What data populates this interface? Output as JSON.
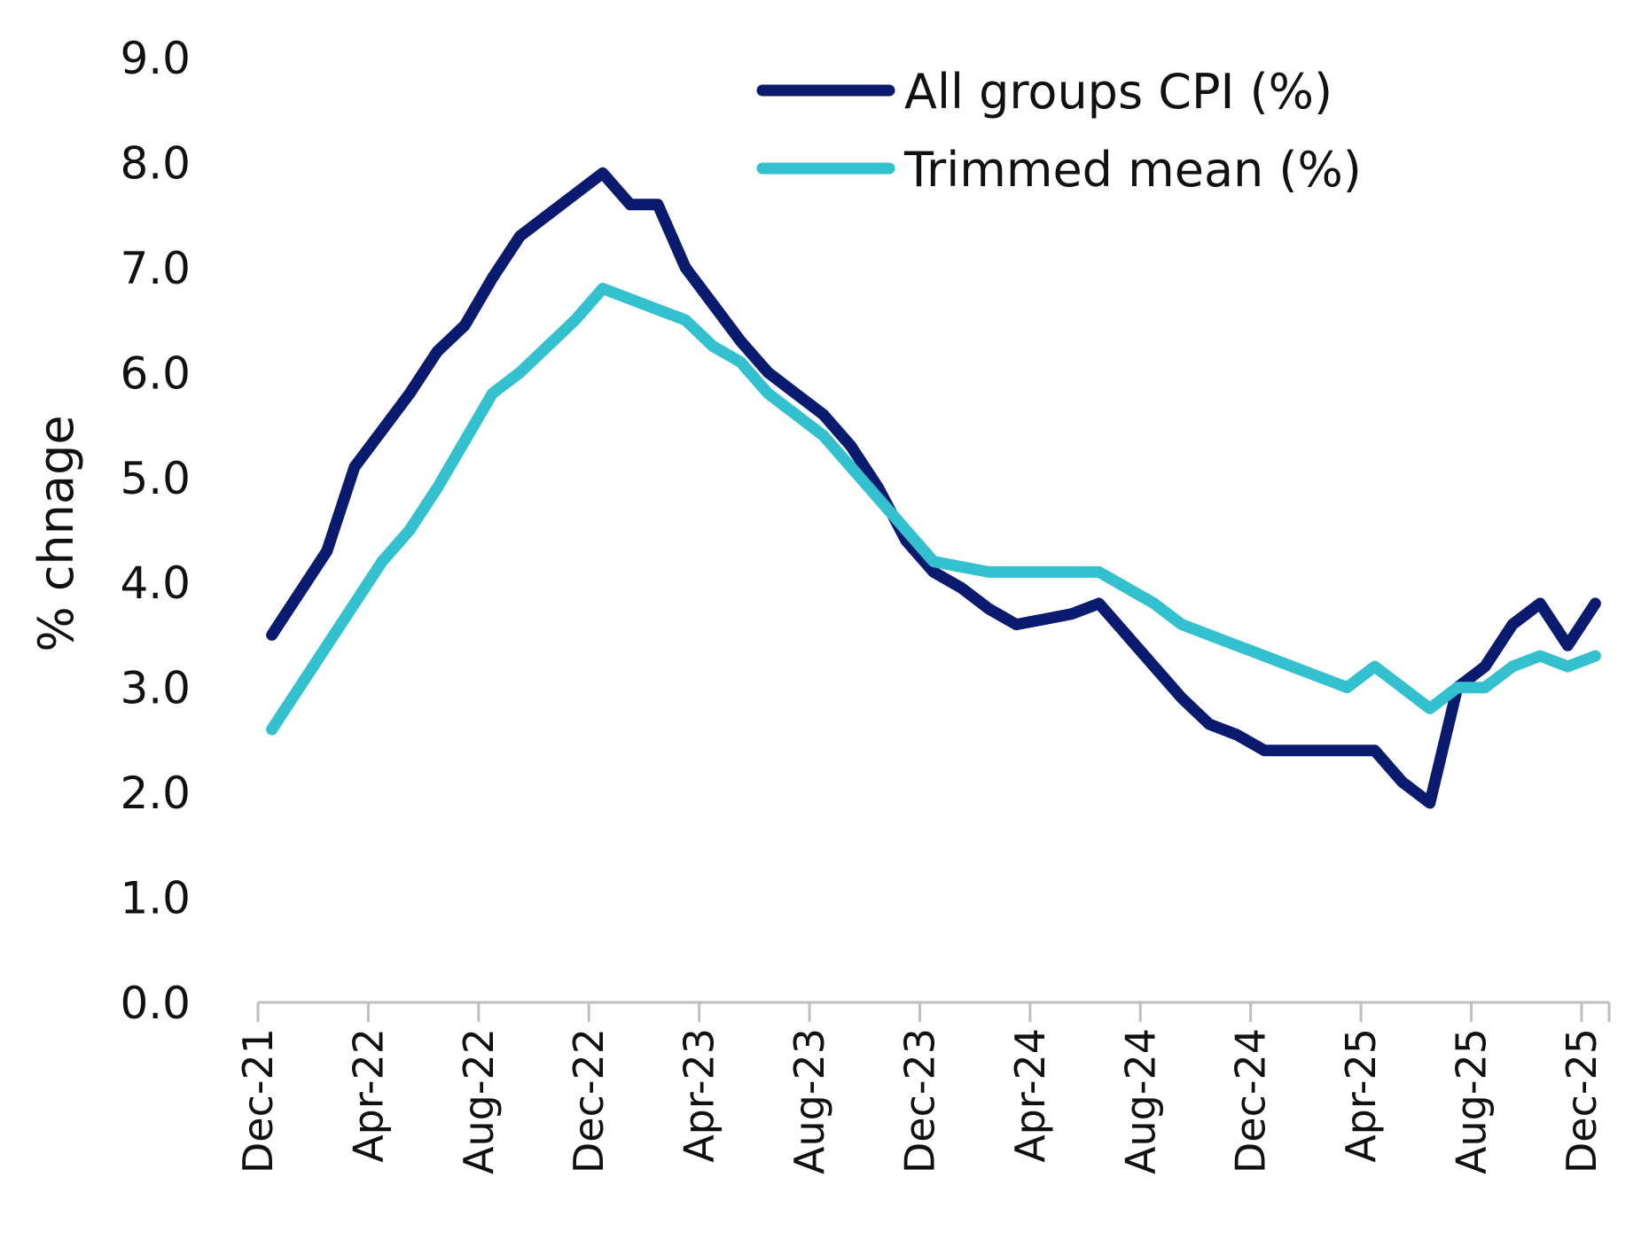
{
  "chart_data": {
    "type": "line",
    "title": "",
    "xlabel": "",
    "ylabel": "% chnage",
    "ylim": [
      0,
      9
    ],
    "yticks": [
      "0.0",
      "1.0",
      "2.0",
      "3.0",
      "4.0",
      "5.0",
      "6.0",
      "7.0",
      "8.0",
      "9.0"
    ],
    "grid": false,
    "legend_position": "top-right",
    "x": [
      "Dec-21",
      "Jan-22",
      "Feb-22",
      "Mar-22",
      "Apr-22",
      "May-22",
      "Jun-22",
      "Jul-22",
      "Aug-22",
      "Sep-22",
      "Oct-22",
      "Nov-22",
      "Dec-22",
      "Jan-23",
      "Feb-23",
      "Mar-23",
      "Apr-23",
      "May-23",
      "Jun-23",
      "Jul-23",
      "Aug-23",
      "Sep-23",
      "Oct-23",
      "Nov-23",
      "Dec-23",
      "Jan-24",
      "Feb-24",
      "Mar-24",
      "Apr-24",
      "May-24",
      "Jun-24",
      "Jul-24",
      "Aug-24",
      "Sep-24",
      "Oct-24",
      "Nov-24",
      "Dec-24",
      "Jan-25",
      "Feb-25",
      "Mar-25",
      "Apr-25",
      "May-25",
      "Jun-25",
      "Jul-25",
      "Aug-25",
      "Sep-25",
      "Oct-25",
      "Nov-25",
      "Dec-25"
    ],
    "xtick_labels": [
      "Dec-21",
      "Apr-22",
      "Aug-22",
      "Dec-22",
      "Apr-23",
      "Aug-23",
      "Dec-23",
      "Apr-24",
      "Aug-24",
      "Dec-24",
      "Apr-25",
      "Aug-25",
      "Dec-25"
    ],
    "series": [
      {
        "name": "All groups CPI (%)",
        "color": "#0a1a6e",
        "values": [
          3.5,
          3.9,
          4.3,
          5.1,
          5.45,
          5.8,
          6.2,
          6.45,
          6.9,
          7.3,
          7.5,
          7.7,
          7.9,
          7.6,
          7.6,
          7.0,
          6.65,
          6.3,
          6.0,
          5.8,
          5.6,
          5.3,
          4.9,
          4.4,
          4.1,
          3.95,
          3.75,
          3.6,
          3.65,
          3.7,
          3.8,
          3.5,
          3.2,
          2.9,
          2.65,
          2.55,
          2.4,
          2.4,
          2.4,
          2.4,
          2.4,
          2.1,
          1.9,
          3.0,
          3.2,
          3.6,
          3.8,
          3.4,
          3.8
        ]
      },
      {
        "name": "Trimmed mean (%)",
        "color": "#33c1cf",
        "values": [
          2.6,
          3.0,
          3.4,
          3.8,
          4.2,
          4.5,
          4.9,
          5.35,
          5.8,
          6.0,
          6.25,
          6.5,
          6.8,
          6.7,
          6.6,
          6.5,
          6.25,
          6.1,
          5.8,
          5.6,
          5.4,
          5.1,
          4.8,
          4.5,
          4.2,
          4.15,
          4.1,
          4.1,
          4.1,
          4.1,
          4.1,
          3.95,
          3.8,
          3.6,
          3.5,
          3.4,
          3.3,
          3.2,
          3.1,
          3.0,
          3.2,
          3.0,
          2.8,
          3.0,
          3.0,
          3.2,
          3.3,
          3.2,
          3.3
        ]
      }
    ]
  }
}
